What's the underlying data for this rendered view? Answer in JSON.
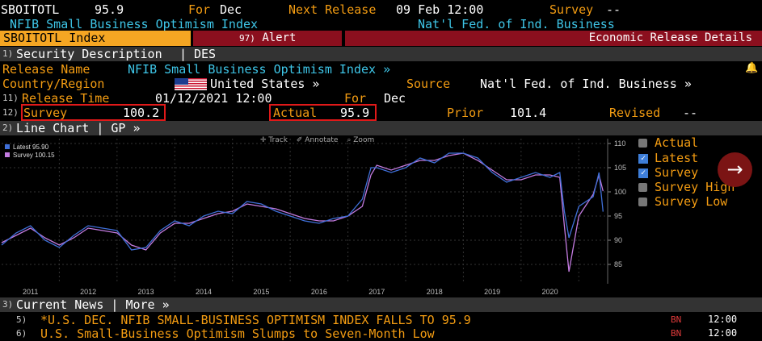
{
  "header": {
    "ticker": "SBOITOTL",
    "value": "95.9",
    "for_label": "For",
    "for_value": "Dec",
    "next_release_label": "Next Release",
    "next_release_value": "09 Feb 12:00",
    "survey_label": "Survey",
    "survey_value": "--",
    "index_name": "NFIB Small Business Optimism Index",
    "source_name": "Nat'l Fed. of Ind. Business"
  },
  "toolbar": {
    "security_tab": "SBOITOTL Index",
    "alert_num": "97)",
    "alert_label": "Alert",
    "eco_label": "Economic Release Details"
  },
  "section1": {
    "num": "1)",
    "title": "Security Description",
    "sep": "|",
    "code": "DES"
  },
  "details": {
    "release_name_label": "Release Name",
    "release_name_value": "NFIB Small Business Optimism Index »",
    "country_label": "Country/Region",
    "country_value": "United States »",
    "source_label": "Source",
    "source_value": "Nat'l Fed. of Ind. Business »",
    "release_time_num": "11)",
    "release_time_label": "Release Time",
    "release_time_value": "01/12/2021 12:00",
    "for_label": "For",
    "for_value": "Dec",
    "survey_num": "12)",
    "survey_label": "Survey",
    "survey_value": "100.2",
    "actual_label": "Actual",
    "actual_value": "95.9",
    "prior_label": "Prior",
    "prior_value": "101.4",
    "revised_label": "Revised",
    "revised_value": "--"
  },
  "section2": {
    "num": "2)",
    "title": "Line Chart | GP »",
    "track": "Track",
    "annotate": "Annotate",
    "zoom": "Zoom"
  },
  "legend_right": {
    "actual": "Actual",
    "latest": "Latest",
    "survey": "Survey",
    "survey_high": "Survey High",
    "survey_low": "Survey Low"
  },
  "colors": {
    "latest": "#3f6fd8",
    "survey": "#c37be0",
    "amber": "#f39c12",
    "red_bar": "#8b0f1e",
    "tab_orange": "#f5a623"
  },
  "chart_data": {
    "type": "line",
    "x_ticks": [
      "2011",
      "2012",
      "2013",
      "2014",
      "2015",
      "2016",
      "2017",
      "2018",
      "2019",
      "2020"
    ],
    "y_ticks": [
      85,
      90,
      95,
      100,
      105,
      110
    ],
    "ylim": [
      81,
      111
    ],
    "xlim": [
      2010.5,
      2021.0
    ],
    "legend": [
      {
        "name": "Latest",
        "value": "95.90"
      },
      {
        "name": "Survey",
        "value": "100.15"
      }
    ],
    "series": [
      {
        "name": "Latest",
        "x": [
          2010.5,
          2010.75,
          2011.0,
          2011.25,
          2011.5,
          2011.75,
          2012.0,
          2012.25,
          2012.5,
          2012.75,
          2013.0,
          2013.25,
          2013.5,
          2013.75,
          2014.0,
          2014.25,
          2014.5,
          2014.75,
          2015.0,
          2015.25,
          2015.5,
          2015.75,
          2016.0,
          2016.25,
          2016.5,
          2016.75,
          2016.9,
          2017.0,
          2017.25,
          2017.5,
          2017.75,
          2018.0,
          2018.25,
          2018.5,
          2018.75,
          2019.0,
          2019.25,
          2019.5,
          2019.75,
          2020.0,
          2020.17,
          2020.25,
          2020.33,
          2020.5,
          2020.75,
          2020.85,
          2020.92
        ],
        "values": [
          89,
          91.5,
          93,
          90,
          88.5,
          91,
          93,
          92.5,
          92,
          88,
          88.5,
          92,
          94,
          93,
          95,
          96,
          95.5,
          98,
          97.5,
          96,
          95,
          94,
          93.5,
          94.5,
          95,
          98.5,
          105,
          105,
          104,
          105,
          107,
          106,
          108,
          108,
          107,
          104,
          102,
          103,
          104,
          103,
          104,
          96,
          90.5,
          97,
          99,
          104,
          95.9
        ]
      },
      {
        "name": "Survey",
        "x": [
          2010.5,
          2010.75,
          2011.0,
          2011.25,
          2011.5,
          2011.75,
          2012.0,
          2012.25,
          2012.5,
          2012.75,
          2013.0,
          2013.25,
          2013.5,
          2013.75,
          2014.0,
          2014.25,
          2014.5,
          2014.75,
          2015.0,
          2015.25,
          2015.5,
          2015.75,
          2016.0,
          2016.25,
          2016.5,
          2016.75,
          2016.9,
          2017.0,
          2017.25,
          2017.5,
          2017.75,
          2018.0,
          2018.25,
          2018.5,
          2018.75,
          2019.0,
          2019.25,
          2019.5,
          2019.75,
          2020.0,
          2020.17,
          2020.25,
          2020.33,
          2020.5,
          2020.75,
          2020.85,
          2020.92
        ],
        "values": [
          89.5,
          91,
          92.5,
          90.5,
          89,
          90.5,
          92.5,
          92,
          91.5,
          89,
          88,
          91.5,
          93.5,
          93.5,
          94.5,
          95.5,
          96,
          97.5,
          97,
          96.5,
          95.5,
          94.5,
          94,
          94,
          95,
          97,
          103.5,
          105.5,
          104.5,
          105.5,
          106.5,
          106.5,
          107.5,
          108,
          106.5,
          104.5,
          102.5,
          102.5,
          103.5,
          103.5,
          103,
          93,
          83.5,
          95,
          99.5,
          103.5,
          100.15
        ]
      }
    ]
  },
  "section3": {
    "num": "3)",
    "title": "Current News | More »"
  },
  "news": [
    {
      "num": "5)",
      "text": "*U.S. DEC. NFIB SMALL-BUSINESS OPTIMISM INDEX FALLS TO 95.9",
      "src": "BN",
      "time": "12:00"
    },
    {
      "num": "6)",
      "text": "U.S. Small-Business Optimism Slumps to Seven-Month Low",
      "src": "BN",
      "time": "12:00"
    }
  ]
}
